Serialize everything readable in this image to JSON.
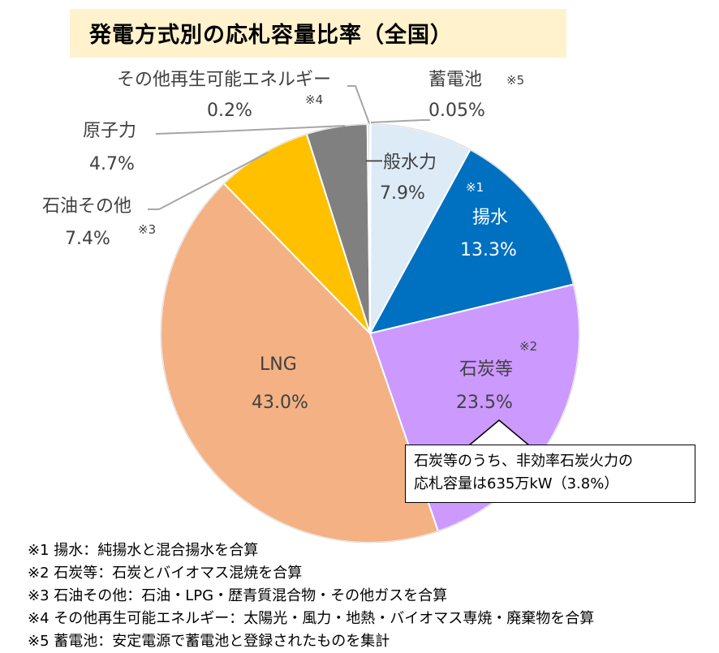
{
  "chart_data": {
    "type": "pie",
    "title": "発電方式別の応札容量比率（全国）",
    "unit": "%",
    "slices": [
      {
        "name": "蓄電池",
        "value": 0.05,
        "label": "0.05%",
        "note": "※5",
        "color": "#FFFFFF"
      },
      {
        "name": "一般水力",
        "value": 7.9,
        "label": "7.9%",
        "note": "",
        "color": "#DDEBF7"
      },
      {
        "name": "揚水",
        "value": 13.3,
        "label": "13.3%",
        "note": "※1",
        "color": "#0070C0"
      },
      {
        "name": "石炭等",
        "value": 23.5,
        "label": "23.5%",
        "note": "※2",
        "color": "#CC99FF"
      },
      {
        "name": "LNG",
        "value": 43.0,
        "label": "43.0%",
        "note": "",
        "color": "#F4B183"
      },
      {
        "name": "石油その他",
        "value": 7.4,
        "label": "7.4%",
        "note": "※3",
        "color": "#FFC000"
      },
      {
        "name": "原子力",
        "value": 4.7,
        "label": "4.7%",
        "note": "",
        "color": "#808080"
      },
      {
        "name": "その他再生可能エネルギー",
        "value": 0.2,
        "label": "0.2%",
        "note": "※4",
        "color": "#D9D9D9"
      }
    ],
    "callout": {
      "line1": "石炭等のうち、非効率石炭火力の",
      "line2": "応札容量は635万kW（3.8%）"
    }
  },
  "footnotes": [
    "※1 揚水：純揚水と混合揚水を合算",
    "※2 石炭等：石炭とバイオマス混焼を合算",
    "※3 石油その他：石油・LPG・歴青質混合物・その他ガスを合算",
    "※4 その他再生可能エネルギー：太陽光・風力・地熱・バイオマス専焼・廃棄物を合算",
    "※5 蓄電池：安定電源で蓄電池と登録されたものを集計"
  ]
}
